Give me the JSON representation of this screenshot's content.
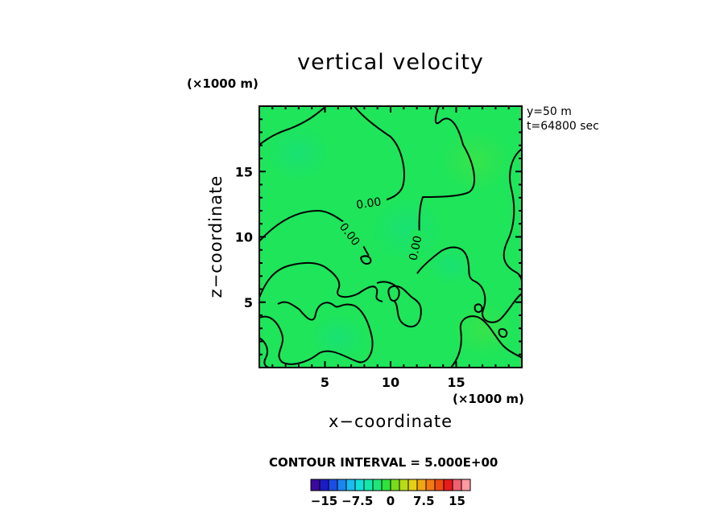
{
  "chart_data": {
    "type": "heatmap",
    "title": "vertical velocity",
    "xlabel": "x−coordinate",
    "ylabel": "z−coordinate",
    "x_unit": "(×1000 m)",
    "y_unit": "(×1000 m)",
    "xlim": [
      0,
      20
    ],
    "ylim": [
      0,
      20
    ],
    "x_ticks": [
      "5",
      "10",
      "15"
    ],
    "x_tick_values": [
      5,
      10,
      15
    ],
    "y_ticks": [
      "5",
      "10",
      "15"
    ],
    "y_tick_values": [
      5,
      10,
      15
    ],
    "annotations": [
      "y=50  m",
      "t=64800  sec"
    ],
    "contour_interval": "CONTOUR INTERVAL = 5.000E+00",
    "contour_level_labels": [
      "0.00",
      "0.00",
      "0.00"
    ],
    "colorbar": {
      "colors": [
        "#3a0a9c",
        "#1c1cc6",
        "#1a4ee6",
        "#1a86f0",
        "#19bdf0",
        "#10e0d8",
        "#12e8a8",
        "#1ee678",
        "#2fe23c",
        "#7adc18",
        "#b8dc16",
        "#e6d010",
        "#f2a612",
        "#f27a12",
        "#ef4a14",
        "#e81a1c",
        "#f06070",
        "#ff9aa0"
      ],
      "tick_labels": [
        "−15",
        "−7.5",
        "0",
        "7.5",
        "15"
      ],
      "tick_values": [
        -15,
        -7.5,
        0,
        7.5,
        15
      ]
    },
    "field_color": "#1ee55a"
  }
}
